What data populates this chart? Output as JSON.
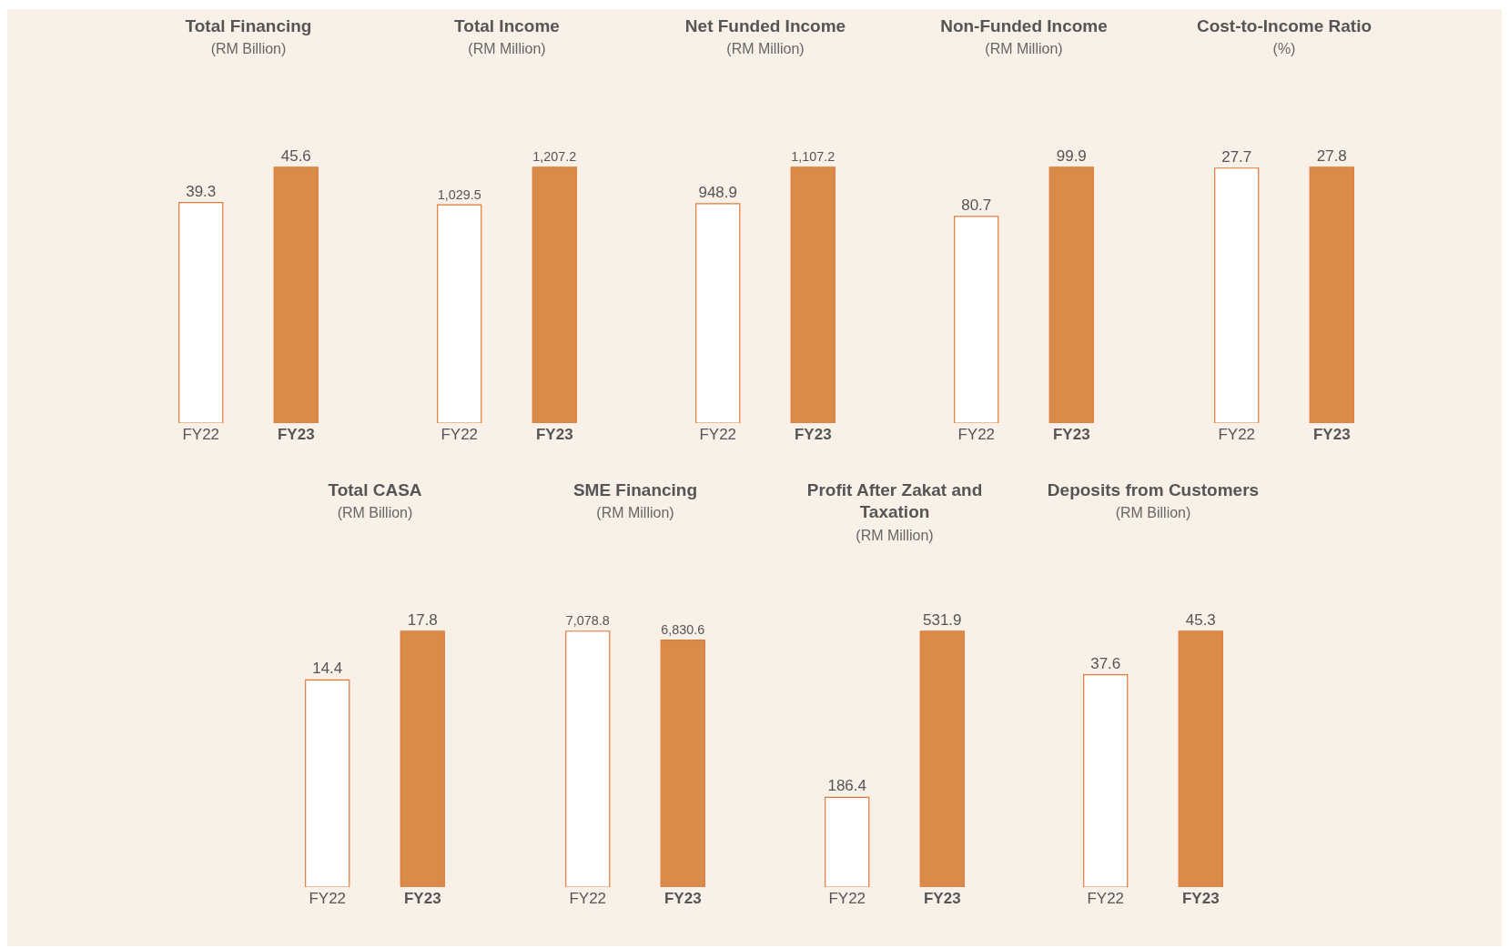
{
  "chart_data": [
    {
      "type": "bar",
      "title": "Total Financing",
      "subtitle": "(RM Billion)",
      "categories": [
        "FY22",
        "FY23"
      ],
      "values": [
        39.3,
        45.6
      ],
      "value_labels": [
        "39.3",
        "45.6"
      ],
      "colors": [
        "#ffffff",
        "#d98c4a"
      ],
      "tick_labels": "x"
    },
    {
      "type": "bar",
      "title": "Total Income",
      "subtitle": "(RM Million)",
      "categories": [
        "FY22",
        "FY23"
      ],
      "values": [
        1029.5,
        1207.2
      ],
      "value_labels": [
        "1,029.5",
        "1,207.2"
      ],
      "colors": [
        "#ffffff",
        "#d98c4a"
      ],
      "tick_labels": "x"
    },
    {
      "type": "bar",
      "title": "Net Funded Income",
      "subtitle": "(RM Million)",
      "categories": [
        "FY22",
        "FY23"
      ],
      "values": [
        948.9,
        1107.2
      ],
      "value_labels": [
        "948.9",
        "1,107.2"
      ],
      "colors": [
        "#ffffff",
        "#d98c4a"
      ],
      "tick_labels": "x"
    },
    {
      "type": "bar",
      "title": "Non-Funded Income",
      "subtitle": "(RM Million)",
      "categories": [
        "FY22",
        "FY23"
      ],
      "values": [
        80.7,
        99.9
      ],
      "value_labels": [
        "80.7",
        "99.9"
      ],
      "colors": [
        "#ffffff",
        "#d98c4a"
      ],
      "tick_labels": "x"
    },
    {
      "type": "bar",
      "title": "Cost-to-Income Ratio",
      "subtitle": "(%)",
      "categories": [
        "FY22",
        "FY23"
      ],
      "values": [
        27.7,
        27.8
      ],
      "value_labels": [
        "27.7",
        "27.8"
      ],
      "colors": [
        "#ffffff",
        "#d98c4a"
      ],
      "tick_labels": "x"
    },
    {
      "type": "bar",
      "title": "Total CASA",
      "subtitle": "(RM Billion)",
      "categories": [
        "FY22",
        "FY23"
      ],
      "values": [
        14.4,
        17.8
      ],
      "value_labels": [
        "14.4",
        "17.8"
      ],
      "colors": [
        "#ffffff",
        "#d98c4a"
      ],
      "tick_labels": "x"
    },
    {
      "type": "bar",
      "title": "SME Financing",
      "subtitle": "(RM Million)",
      "categories": [
        "FY22",
        "FY23"
      ],
      "values": [
        7078.8,
        6830.6
      ],
      "value_labels": [
        "7,078.8",
        "6,830.6"
      ],
      "colors": [
        "#ffffff",
        "#d98c4a"
      ],
      "tick_labels": "x"
    },
    {
      "type": "bar",
      "title": "Profit After Zakat and Taxation",
      "subtitle": "(RM Million)",
      "categories": [
        "FY22",
        "FY23"
      ],
      "values": [
        186.4,
        531.9
      ],
      "value_labels": [
        "186.4",
        "531.9"
      ],
      "colors": [
        "#ffffff",
        "#d98c4a"
      ],
      "tick_labels": "x"
    },
    {
      "type": "bar",
      "title": "Deposits from Customers",
      "subtitle": "(RM Billion)",
      "categories": [
        "FY22",
        "FY23"
      ],
      "values": [
        37.6,
        45.3
      ],
      "value_labels": [
        "37.6",
        "45.3"
      ],
      "colors": [
        "#ffffff",
        "#d98c4a"
      ],
      "tick_labels": "x"
    }
  ]
}
